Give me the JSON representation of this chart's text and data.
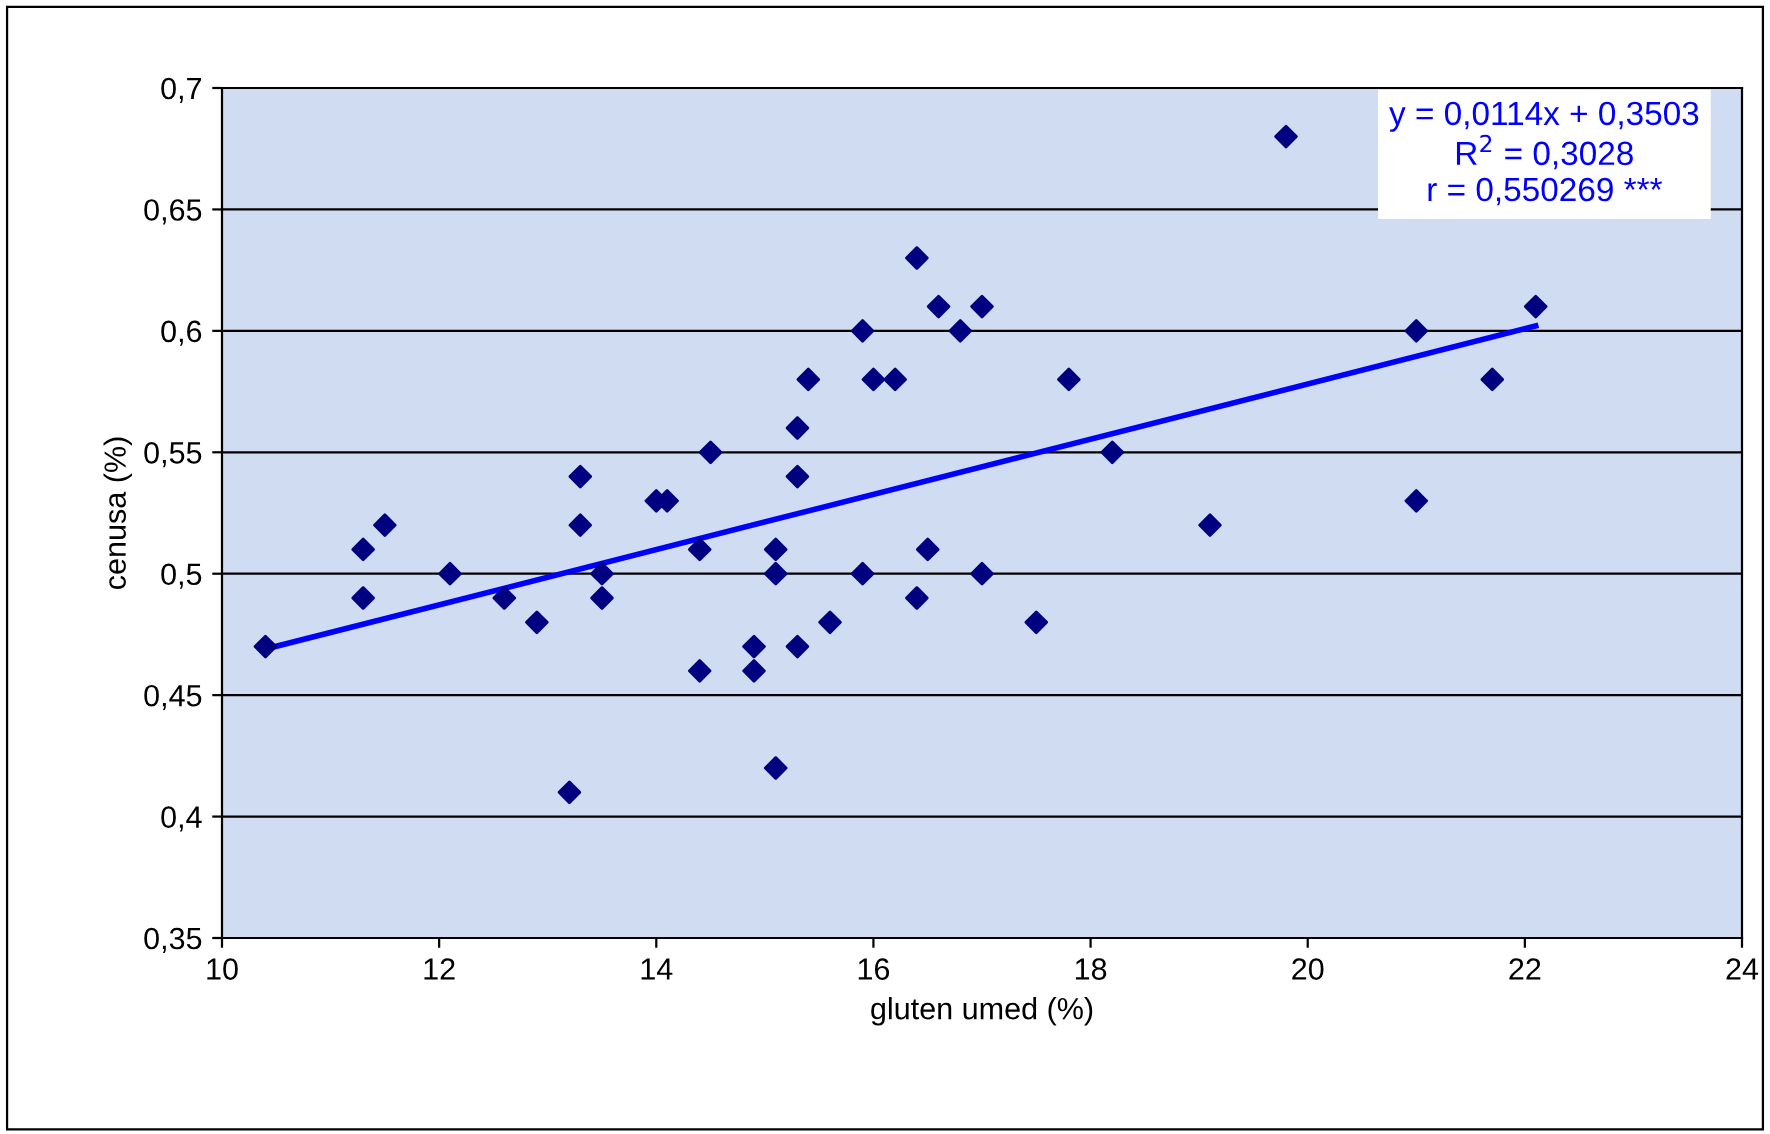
{
  "chart_data": {
    "type": "scatter",
    "xlabel": "gluten umed (%)",
    "ylabel": "cenusa (%)",
    "annotations": [
      "y = 0,0114x + 0,3503",
      "R$^{2}$ = 0,3028",
      "r = 0,550269 ***"
    ],
    "series": [
      {
        "color": "#000080",
        "marker": "diamond",
        "x": [
          10.4,
          11.3,
          11.3,
          11.5,
          12.1,
          12.6,
          12.9,
          13.2,
          13.3,
          13.3,
          13.5,
          13.5,
          14.0,
          14.1,
          14.4,
          14.4,
          14.5,
          14.9,
          14.9,
          15.1,
          15.1,
          15.1,
          15.3,
          15.3,
          15.3,
          15.4,
          15.6,
          15.9,
          15.9,
          16.0,
          16.2,
          16.4,
          16.4,
          16.5,
          16.6,
          16.8,
          17.0,
          17.0,
          17.5,
          17.8,
          18.2,
          19.1,
          19.8,
          21.0,
          21.0,
          21.7,
          22.1
        ],
        "values": [
          0.47,
          0.51,
          0.49,
          0.52,
          0.5,
          0.49,
          0.48,
          0.41,
          0.54,
          0.52,
          0.5,
          0.49,
          0.53,
          0.53,
          0.51,
          0.46,
          0.55,
          0.47,
          0.46,
          0.51,
          0.5,
          0.42,
          0.56,
          0.54,
          0.47,
          0.58,
          0.48,
          0.6,
          0.5,
          0.58,
          0.58,
          0.63,
          0.49,
          0.51,
          0.61,
          0.6,
          0.61,
          0.5,
          0.48,
          0.58,
          0.55,
          0.52,
          0.68,
          0.6,
          0.53,
          0.58,
          0.61
        ]
      },
      {
        "type": "line",
        "color": "#0000ff",
        "marker": "none",
        "line_style": "solid",
        "x": [
          10.4,
          22.1
        ],
        "values": [
          0.469,
          0.602
        ]
      }
    ],
    "xlim": [
      10,
      24
    ],
    "xticks": [
      10,
      12,
      14,
      16,
      18,
      20,
      22,
      24
    ],
    "ylim": [
      0.35,
      0.7
    ],
    "yticks": [
      {
        "value": 0.35,
        "label": "0,35"
      },
      {
        "value": 0.4,
        "label": "0,4"
      },
      {
        "value": 0.45,
        "label": "0,45"
      },
      {
        "value": 0.5,
        "label": "0,5"
      },
      {
        "value": 0.55,
        "label": "0,55"
      },
      {
        "value": 0.6,
        "label": "0,6"
      },
      {
        "value": 0.65,
        "label": "0,65"
      },
      {
        "value": 0.7,
        "label": "0,7"
      }
    ],
    "grid": "y",
    "legend": false
  }
}
